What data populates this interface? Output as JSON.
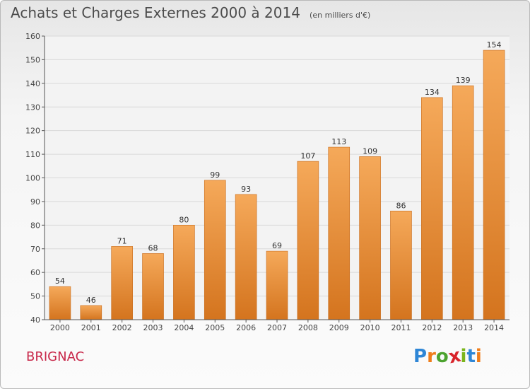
{
  "title": "Achats et Charges Externes 2000 à 2014",
  "unit": "(en milliers d'€)",
  "commune": "BRIGNAC",
  "brand": {
    "letters": [
      "P",
      "r",
      "o",
      "x",
      "i",
      "t",
      "i"
    ],
    "colors": [
      "#2e86d6",
      "#ef7d1a",
      "#4ca32f",
      "#d8232a",
      "#7ab51d",
      "#2e86d6",
      "#ef7d1a"
    ]
  },
  "colors": {
    "bar_top": "#f5a95a",
    "bar_bottom": "#d4741e",
    "title_text": "#4c4c4c",
    "commune_text": "#c8284a"
  },
  "chart_data": {
    "type": "bar",
    "title": "Achats et Charges Externes 2000 à 2014",
    "subtitle": "(en milliers d'€)",
    "xlabel": "",
    "ylabel": "",
    "categories": [
      "2000",
      "2001",
      "2002",
      "2003",
      "2004",
      "2005",
      "2006",
      "2007",
      "2008",
      "2009",
      "2010",
      "2011",
      "2012",
      "2013",
      "2014"
    ],
    "values": [
      54,
      46,
      71,
      68,
      80,
      99,
      93,
      69,
      107,
      113,
      109,
      86,
      134,
      139,
      154
    ],
    "ylim": [
      40,
      160
    ],
    "yticks": [
      40,
      50,
      60,
      70,
      80,
      90,
      100,
      110,
      120,
      130,
      140,
      150,
      160
    ],
    "grid": true,
    "data_labels": true
  }
}
